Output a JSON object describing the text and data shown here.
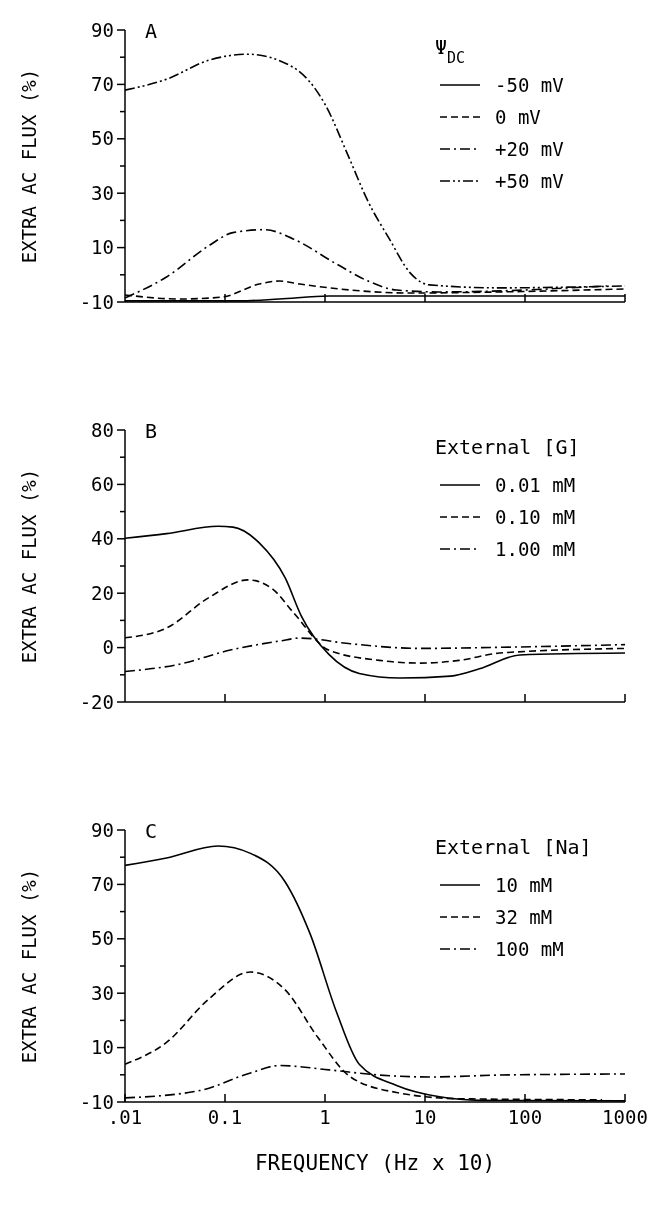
{
  "chart_data": [
    {
      "type": "line",
      "title": "A",
      "ylabel": "EXTRA AC FLUX (%)",
      "legend_title": "Ψ$_{DC}$",
      "legend": "top right",
      "tick_labels": "y",
      "grid": false,
      "xlim": [
        0.01,
        1000
      ],
      "xticks": [
        0.1,
        1,
        10,
        100,
        1000
      ],
      "log": "x",
      "ylim": [
        -10,
        90
      ],
      "yticks": [
        -10,
        {
          "value": 0,
          "label": null
        },
        10,
        {
          "value": 20,
          "label": null
        },
        30,
        {
          "value": 40,
          "label": null
        },
        50,
        {
          "value": 60,
          "label": null
        },
        70,
        {
          "value": 80,
          "label": null
        },
        90
      ],
      "series": [
        {
          "name": "-50 mV",
          "color": "#000000",
          "line_style": "solid",
          "x": [
            0.01,
            0.14,
            0.35,
            1.1,
            18,
            1000
          ],
          "values": [
            -9.6,
            -9.6,
            -8.9,
            -7.8,
            -7.8,
            -7.8
          ]
        },
        {
          "name": "0 mV",
          "color": "#000000",
          "line_style": "dashed",
          "x": [
            0.01,
            0.035,
            0.093,
            0.22,
            0.35,
            0.56,
            1.8,
            7.1,
            56,
            1000
          ],
          "values": [
            -7.4,
            -8.9,
            -8.2,
            -3.4,
            -2.3,
            -3.4,
            -5.6,
            -6.7,
            -6.3,
            -5.2
          ]
        },
        {
          "name": "+20 mV",
          "color": "#000000",
          "line_style": "dashdot",
          "x": [
            0.01,
            0.026,
            0.069,
            0.12,
            0.25,
            0.48,
            1.3,
            2.7,
            5.2,
            14,
            660
          ],
          "values": [
            -8.5,
            -0.8,
            10.7,
            15.5,
            16.6,
            13.2,
            4.0,
            -2.3,
            -5.6,
            -6.3,
            -4.1
          ]
        },
        {
          "name": "+50 mV",
          "color": "#000000",
          "line_style": "dashdotdot",
          "x": [
            0.01,
            0.026,
            0.069,
            0.17,
            0.48,
            1.0,
            1.7,
            2.7,
            4.4,
            7.1,
            11,
            56,
            1000
          ],
          "values": [
            67.9,
            71.9,
            78.9,
            81.1,
            76.3,
            62.7,
            43.9,
            26.9,
            13.2,
            0.7,
            -3.7,
            -4.8,
            -4.1
          ]
        }
      ]
    },
    {
      "type": "line",
      "title": "B",
      "ylabel": "EXTRA AC FLUX (%)",
      "legend_title": "External [G]",
      "legend": "top right",
      "tick_labels": "y",
      "grid": false,
      "xlim": [
        0.01,
        1000
      ],
      "xticks": [
        0.1,
        1,
        10,
        100,
        1000
      ],
      "log": "x",
      "ylim": [
        -20,
        80
      ],
      "yticks": [
        -20,
        {
          "value": -10,
          "label": null
        },
        0,
        {
          "value": 10,
          "label": null
        },
        20,
        {
          "value": 30,
          "label": null
        },
        40,
        {
          "value": 50,
          "label": null
        },
        60,
        {
          "value": 70,
          "label": null
        },
        80
      ],
      "series": [
        {
          "name": "0.01 mM",
          "color": "#000000",
          "line_style": "solid",
          "x": [
            0.01,
            0.026,
            0.085,
            0.12,
            0.22,
            0.4,
            0.58,
            1.1,
            2.2,
            5.6,
            18,
            35,
            89,
            1000
          ],
          "values": [
            40.2,
            41.9,
            44.6,
            44.3,
            38.5,
            25.6,
            11.6,
            -2.6,
            -9.5,
            -11.2,
            -10.5,
            -7.8,
            -2.7,
            -2.0
          ]
        },
        {
          "name": "0.10 mM",
          "color": "#000000",
          "line_style": "dashed",
          "x": [
            0.01,
            0.026,
            0.069,
            0.17,
            0.3,
            0.48,
            1.1,
            3.5,
            8.9,
            22,
            56,
            1000
          ],
          "values": [
            3.6,
            7.2,
            18.4,
            24.9,
            21.5,
            13.0,
            -1.0,
            -4.7,
            -5.7,
            -4.7,
            -2.0,
            -0.3
          ]
        },
        {
          "name": "1.00 mM",
          "color": "#000000",
          "line_style": "dashdot",
          "x": [
            0.01,
            0.035,
            0.11,
            0.35,
            0.56,
            1.8,
            8.9,
            56,
            1000
          ],
          "values": [
            -8.8,
            -6.1,
            -1.0,
            2.4,
            3.5,
            1.4,
            -0.3,
            0.1,
            1.1
          ]
        }
      ]
    },
    {
      "type": "line",
      "title": "C",
      "xlabel": "FREQUENCY (Hz x 10)",
      "ylabel": "EXTRA AC FLUX (%)",
      "legend_title": "External [Na]",
      "legend": "top right",
      "grid": false,
      "xlim": [
        0.01,
        1000
      ],
      "xticks": [
        {
          "value": 0.01,
          "label": ".01"
        },
        0.1,
        1,
        10,
        100,
        1000
      ],
      "log": "x",
      "ylim": [
        -10,
        90
      ],
      "yticks": [
        -10,
        {
          "value": 0,
          "label": null
        },
        10,
        {
          "value": 20,
          "label": null
        },
        30,
        {
          "value": 40,
          "label": null
        },
        50,
        {
          "value": 60,
          "label": null
        },
        70,
        {
          "value": 80,
          "label": null
        },
        90
      ],
      "series": [
        {
          "name": "10 mM",
          "color": "#000000",
          "line_style": "solid",
          "x": [
            0.01,
            0.026,
            0.085,
            0.18,
            0.4,
            0.71,
            1.3,
            2.2,
            5.2,
            14,
            36,
            1000
          ],
          "values": [
            77.0,
            79.7,
            84.1,
            81.4,
            70.9,
            51.8,
            23.2,
            3.9,
            -3.9,
            -8.1,
            -9.4,
            -9.6
          ]
        },
        {
          "name": "32 mM",
          "color": "#000000",
          "line_style": "dashed",
          "x": [
            0.01,
            0.026,
            0.069,
            0.18,
            0.4,
            0.85,
            1.8,
            5.2,
            22,
            590
          ],
          "values": [
            3.9,
            11.9,
            27.9,
            37.8,
            31.2,
            13.7,
            -0.8,
            -6.5,
            -8.8,
            -9.2
          ]
        },
        {
          "name": "100 mM",
          "color": "#000000",
          "line_style": "dashdot",
          "x": [
            0.01,
            0.056,
            0.18,
            0.35,
            1.1,
            3.5,
            11,
            56,
            1000
          ],
          "values": [
            -8.5,
            -5.8,
            0.7,
            3.4,
            1.8,
            -0.1,
            -0.8,
            -0.1,
            0.3
          ]
        }
      ]
    }
  ]
}
